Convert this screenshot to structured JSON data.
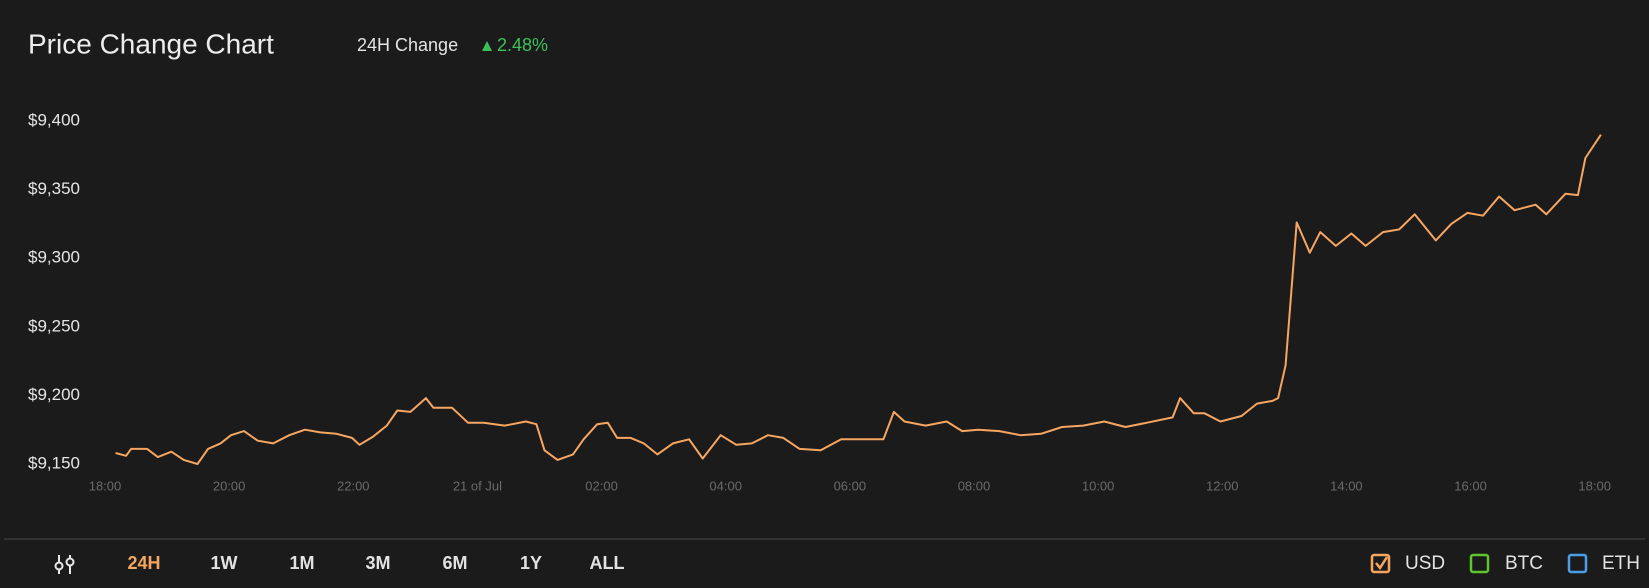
{
  "header": {
    "title": "Price Change Chart",
    "change_label": "24H Change",
    "change": "2.48%"
  },
  "chart_data": {
    "type": "line",
    "x": [
      0.17,
      0.34,
      0.42,
      0.68,
      0.85,
      1.07,
      1.27,
      1.49,
      1.66,
      1.86,
      2.03,
      2.24,
      2.46,
      2.71,
      2.97,
      3.22,
      3.47,
      3.73,
      3.98,
      4.1,
      4.32,
      4.54,
      4.71,
      4.92,
      5.17,
      5.29,
      5.59,
      5.85,
      6.1,
      6.44,
      6.78,
      6.95,
      7.08,
      7.29,
      7.54,
      7.71,
      7.93,
      8.1,
      8.25,
      8.47,
      8.68,
      8.9,
      9.15,
      9.41,
      9.63,
      9.92,
      10.17,
      10.42,
      10.68,
      10.93,
      11.19,
      11.53,
      11.86,
      12.2,
      12.54,
      12.71,
      12.88,
      13.22,
      13.56,
      13.81,
      14.07,
      14.41,
      14.75,
      15.08,
      15.42,
      15.76,
      16.1,
      16.44,
      16.78,
      17.2,
      17.32,
      17.54,
      17.71,
      17.97,
      18.31,
      18.56,
      18.81,
      18.9,
      19.02,
      19.2,
      19.41,
      19.58,
      19.83,
      20.08,
      20.31,
      20.59,
      20.85,
      21.1,
      21.44,
      21.69,
      21.95,
      22.2,
      22.46,
      22.71,
      23.05,
      23.22,
      23.53,
      23.73,
      23.85,
      24.1
    ],
    "series": [
      {
        "name": "USD",
        "color": "#f6a660",
        "values": [
          9158,
          9156,
          9161,
          9161,
          9155,
          9159,
          9153,
          9150,
          9161,
          9165,
          9171,
          9174,
          9167,
          9165,
          9171,
          9175,
          9173,
          9172,
          9169,
          9164,
          9170,
          9178,
          9189,
          9188,
          9198,
          9191,
          9191,
          9180,
          9180,
          9178,
          9181,
          9179,
          9160,
          9153,
          9157,
          9168,
          9179,
          9180,
          9169,
          9169,
          9165,
          9157,
          9165,
          9168,
          9154,
          9171,
          9164,
          9165,
          9171,
          9169,
          9161,
          9160,
          9168,
          9168,
          9168,
          9188,
          9181,
          9178,
          9181,
          9174,
          9175,
          9174,
          9171,
          9172,
          9177,
          9178,
          9181,
          9177,
          9180,
          9184,
          9198,
          9187,
          9187,
          9181,
          9185,
          9194,
          9196,
          9198,
          9222,
          9326,
          9304,
          9319,
          9309,
          9318,
          9309,
          9319,
          9321,
          9332,
          9313,
          9325,
          9333,
          9331,
          9345,
          9335,
          9339,
          9332,
          9347,
          9346,
          9373,
          9390
        ]
      }
    ],
    "xlim": [
      -0.3,
      24.3
    ],
    "xticks": [
      {
        "value": 0,
        "label": "18:00"
      },
      {
        "value": 2,
        "label": "20:00"
      },
      {
        "value": 4,
        "label": "22:00"
      },
      {
        "value": 6,
        "label": "21 of Jul"
      },
      {
        "value": 8,
        "label": "02:00"
      },
      {
        "value": 10,
        "label": "04:00"
      },
      {
        "value": 12,
        "label": "06:00"
      },
      {
        "value": 14,
        "label": "08:00"
      },
      {
        "value": 16,
        "label": "10:00"
      },
      {
        "value": 18,
        "label": "12:00"
      },
      {
        "value": 20,
        "label": "14:00"
      },
      {
        "value": 22,
        "label": "16:00"
      },
      {
        "value": 24,
        "label": "18:00"
      }
    ],
    "ylim": [
      9150,
      9400
    ],
    "yticks": [
      {
        "value": 9150,
        "label": "$9,150"
      },
      {
        "value": 9200,
        "label": "$9,200"
      },
      {
        "value": 9250,
        "label": "$9,250"
      },
      {
        "value": 9300,
        "label": "$9,300"
      },
      {
        "value": 9350,
        "label": "$9,350"
      },
      {
        "value": 9400,
        "label": "$9,400"
      }
    ]
  },
  "ranges": {
    "options": [
      "24H",
      "1W",
      "1M",
      "3M",
      "6M",
      "1Y",
      "ALL"
    ],
    "active": 0
  },
  "toggles": [
    {
      "label": "BTC",
      "color": "#5fc52e"
    },
    {
      "label": "ETH",
      "color": "#4a9fea"
    }
  ]
}
